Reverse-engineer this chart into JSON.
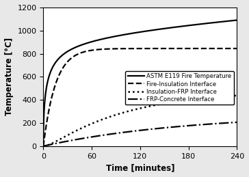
{
  "xlabel": "Time [minutes]",
  "ylabel": "Temperature [°C]",
  "xlim": [
    0,
    240
  ],
  "ylim": [
    0,
    1200
  ],
  "xticks": [
    0,
    60,
    120,
    180,
    240
  ],
  "yticks": [
    0,
    200,
    400,
    600,
    800,
    1000,
    1200
  ],
  "legend": [
    {
      "label": "ASTM E119 Fire Temperature",
      "linestyle": "solid",
      "color": "black",
      "linewidth": 1.6
    },
    {
      "label": "Fire-Insulation Interface",
      "linestyle": "dashed",
      "color": "black",
      "linewidth": 1.6
    },
    {
      "label": "Insulation-FRP Interface",
      "linestyle": "dotted",
      "color": "black",
      "linewidth": 1.8
    },
    {
      "label": "FRP-Concrete Interface",
      "linestyle": "dashdot",
      "color": "black",
      "linewidth": 1.6
    }
  ],
  "figure_facecolor": "#e8e8e8",
  "axes_facecolor": "#ffffff"
}
